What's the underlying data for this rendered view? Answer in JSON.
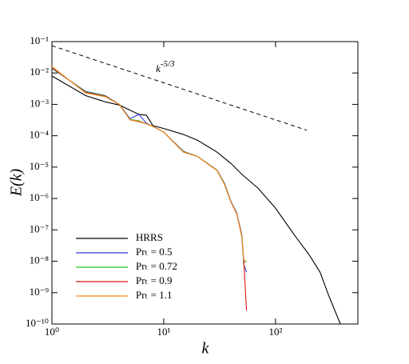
{
  "chart_data": {
    "type": "line",
    "x_label": "k",
    "y_label": "E(k)",
    "log_x": true,
    "log_y": true,
    "xlim": [
      1,
      545
    ],
    "ylim": [
      1e-10,
      0.1
    ],
    "xticks": [
      {
        "value": 1,
        "label": "10⁰"
      },
      {
        "value": 10,
        "label": "10¹"
      },
      {
        "value": 100,
        "label": "10²"
      }
    ],
    "yticks": [
      {
        "value": 0.1,
        "label": "10⁻¹"
      },
      {
        "value": 0.01,
        "label": "10⁻²"
      },
      {
        "value": 0.001,
        "label": "10⁻³"
      },
      {
        "value": 0.0001,
        "label": "10⁻⁴"
      },
      {
        "value": 1e-05,
        "label": "10⁻⁵"
      },
      {
        "value": 1e-06,
        "label": "10⁻⁶"
      },
      {
        "value": 1e-07,
        "label": "10⁻⁷"
      },
      {
        "value": 1e-08,
        "label": "10⁻⁸"
      },
      {
        "value": 1e-09,
        "label": "10⁻⁹"
      },
      {
        "value": 1e-10,
        "label": "10⁻¹⁰"
      }
    ],
    "series": [
      {
        "name": "HRRS",
        "color": "#000000",
        "x": [
          1,
          2,
          3,
          4,
          5,
          6,
          7,
          8,
          10,
          15,
          20,
          30,
          40,
          50,
          70,
          100,
          150,
          200,
          250,
          300,
          380
        ],
        "values": [
          0.008,
          0.0019,
          0.0012,
          0.00095,
          0.00065,
          0.00048,
          0.00045,
          0.00021,
          0.00017,
          0.00011,
          7.2e-05,
          3e-05,
          1.3e-05,
          5.9e-06,
          2.1e-06,
          4.9e-07,
          6.3e-08,
          1.6e-08,
          4.5e-09,
          7.8e-10,
          1e-10
        ]
      },
      {
        "name": "Prₜ = 0.5",
        "color": "#2b3bd6",
        "x": [
          1,
          2,
          3,
          4,
          5,
          6,
          7,
          8,
          10,
          15,
          20,
          30,
          35,
          40,
          45,
          50,
          52,
          55
        ],
        "values": [
          0.014,
          0.0026,
          0.0019,
          0.001,
          0.00035,
          0.00048,
          0.00025,
          0.0002,
          0.00013,
          3.2e-05,
          2.2e-05,
          8e-06,
          3e-06,
          8e-07,
          3.5e-07,
          7e-08,
          8e-09,
          4.5e-09
        ]
      },
      {
        "name": "Prₜ = 0.72",
        "color": "#22c422",
        "x": [
          1,
          2,
          3,
          4,
          5,
          6,
          7,
          8,
          10,
          15,
          20,
          30,
          35,
          40,
          45,
          50,
          52,
          55
        ],
        "values": [
          0.0145,
          0.0025,
          0.00185,
          0.001,
          0.00033,
          0.0003,
          0.00024,
          0.0002,
          0.00013,
          3.1e-05,
          2.2e-05,
          7.9e-06,
          2.9e-06,
          7.7e-07,
          3.3e-07,
          6.5e-08,
          9e-09,
          1e-08
        ]
      },
      {
        "name": "Prₜ = 0.9",
        "color": "#e01515",
        "x": [
          1,
          2,
          3,
          4,
          5,
          6,
          7,
          8,
          10,
          15,
          20,
          30,
          35,
          40,
          45,
          50,
          52,
          55
        ],
        "values": [
          0.015,
          0.0024,
          0.0018,
          0.001,
          0.00032,
          0.00028,
          0.00024,
          0.0002,
          0.00013,
          3e-05,
          2.2e-05,
          7.8e-06,
          2.8e-06,
          7.5e-07,
          3.2e-07,
          6e-08,
          1e-08,
          2.7e-10
        ]
      },
      {
        "name": "Prₜ = 1.1",
        "color": "#f08a1c",
        "x": [
          1,
          2,
          3,
          4,
          5,
          6,
          7,
          8,
          10,
          15,
          20,
          30,
          35,
          40,
          45,
          50,
          52,
          55
        ],
        "values": [
          0.016,
          0.0023,
          0.00175,
          0.001,
          0.00032,
          0.00029,
          0.00024,
          0.0002,
          0.00013,
          3e-05,
          2.2e-05,
          7.8e-06,
          2.8e-06,
          7.6e-07,
          3.3e-07,
          6.2e-08,
          1.1e-08,
          1e-08
        ]
      }
    ],
    "reference_line": {
      "x": [
        1,
        190
      ],
      "y": [
        0.074,
        0.00015
      ],
      "color": "#000000",
      "dashed": true
    },
    "annotation": {
      "text": "k",
      "superscript": "-5/3",
      "x": 8.5,
      "y": 0.013
    },
    "legend": "lower-left"
  }
}
